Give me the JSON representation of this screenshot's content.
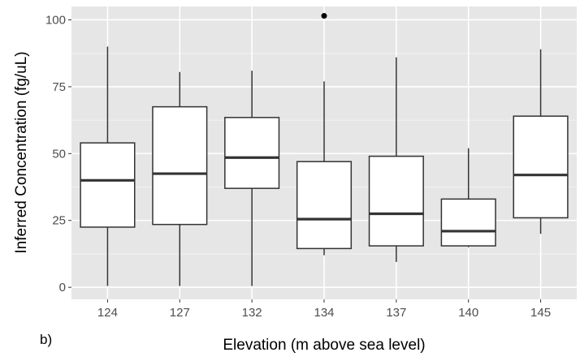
{
  "panel_label": "b)",
  "chart_data": {
    "type": "boxplot",
    "xlabel": "Elevation (m above sea level)",
    "ylabel": "Inferred Concentration (fg/uL)",
    "categories": [
      "124",
      "127",
      "132",
      "134",
      "137",
      "140",
      "145"
    ],
    "ylim": [
      -4.5,
      105
    ],
    "yticks": [
      0,
      25,
      50,
      75,
      100
    ],
    "grid": true,
    "legend": "none",
    "colors": {
      "panel_background": "#e6e6e6",
      "grid_major": "#ffffff",
      "grid_minor": "#f2f2f2",
      "box_fill": "#ffffff",
      "box_line": "#333333",
      "outlier": "#000000"
    },
    "boxes": [
      {
        "category": "124",
        "min": 0.5,
        "q1": 22.5,
        "median": 40,
        "q3": 54,
        "max": 90,
        "outliers": []
      },
      {
        "category": "127",
        "min": 0.5,
        "q1": 23.5,
        "median": 42.5,
        "q3": 67.5,
        "max": 80.5,
        "outliers": []
      },
      {
        "category": "132",
        "min": 0.5,
        "q1": 37,
        "median": 48.5,
        "q3": 63.5,
        "max": 81,
        "outliers": []
      },
      {
        "category": "134",
        "min": 12,
        "q1": 14.5,
        "median": 25.5,
        "q3": 47,
        "max": 77,
        "outliers": [
          101.5
        ]
      },
      {
        "category": "137",
        "min": 9.5,
        "q1": 15.5,
        "median": 27.5,
        "q3": 49,
        "max": 86,
        "outliers": []
      },
      {
        "category": "140",
        "min": 15,
        "q1": 15.5,
        "median": 21,
        "q3": 33,
        "max": 52,
        "outliers": []
      },
      {
        "category": "145",
        "min": 20,
        "q1": 26,
        "median": 42,
        "q3": 64,
        "max": 89,
        "outliers": []
      }
    ]
  }
}
